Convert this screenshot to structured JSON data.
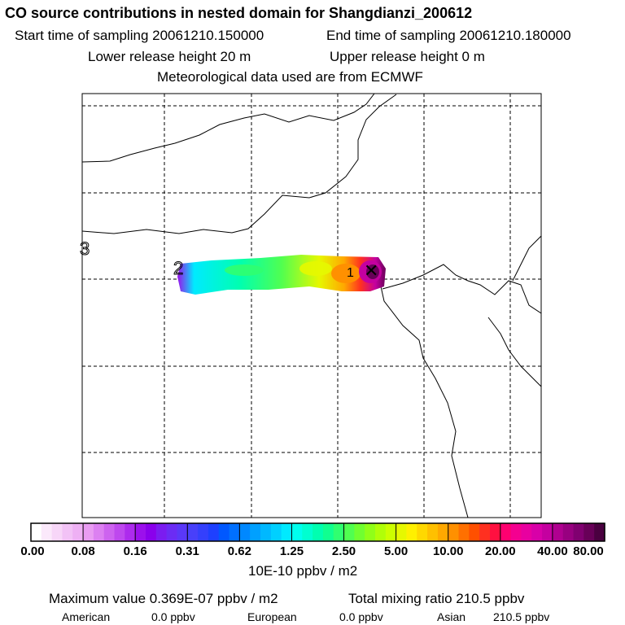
{
  "header": {
    "title": "CO  source contributions in nested domain for Shangdianzi_200612",
    "start_time": "Start time of sampling 20061210.150000",
    "end_time": "End time of sampling 20061210.180000",
    "lower_height": "Lower release height   20 m",
    "upper_height": "Upper release height    0 m",
    "met_data": "Meteorological data used are from ECMWF"
  },
  "map": {
    "markers": [
      "1",
      "2",
      "3"
    ],
    "receptor_symbol": "✕"
  },
  "colorbar": {
    "ticks": [
      "0.00",
      "0.08",
      "0.16",
      "0.31",
      "0.62",
      "1.25",
      "2.50",
      "5.00",
      "10.00",
      "20.00",
      "40.00",
      "80.00"
    ],
    "colors": [
      "#ffffff",
      "#fbe9fb",
      "#f7d6f8",
      "#f2c2f6",
      "#eeb0f4",
      "#e99cf2",
      "#dc80f1",
      "#cd63ef",
      "#be48ee",
      "#ad2bed",
      "#9b10ec",
      "#8a00ec",
      "#7b1cf0",
      "#6b2cf4",
      "#5a38f8",
      "#4840fa",
      "#3440fc",
      "#1e40ff",
      "#0058ff",
      "#0070ff",
      "#0088ff",
      "#00a0ff",
      "#00b8ff",
      "#00d0ff",
      "#00eaff",
      "#00ffee",
      "#00ffd0",
      "#00ffb0",
      "#10ff90",
      "#30ff70",
      "#50ff50",
      "#70ff30",
      "#90ff18",
      "#b0ff08",
      "#ccff00",
      "#e6f800",
      "#fff000",
      "#ffd800",
      "#ffc000",
      "#ffa800",
      "#ff9000",
      "#ff7000",
      "#ff5000",
      "#ff3020",
      "#ff1040",
      "#ff0070",
      "#f40090",
      "#e800a0",
      "#d800a8",
      "#c400a0",
      "#b00090",
      "#980080",
      "#800070",
      "#680058",
      "#4a0040"
    ],
    "unit": "10E-10 ppbv / m2"
  },
  "summary": {
    "max_value": "Maximum value  0.369E-07 ppbv / m2",
    "total_mixing": "Total mixing ratio     210.5 ppbv",
    "american_label": "American",
    "american_value": "0.0 ppbv",
    "european_label": "European",
    "european_value": "0.0 ppbv",
    "asian_label": "Asian",
    "asian_value": "210.5 ppbv"
  }
}
